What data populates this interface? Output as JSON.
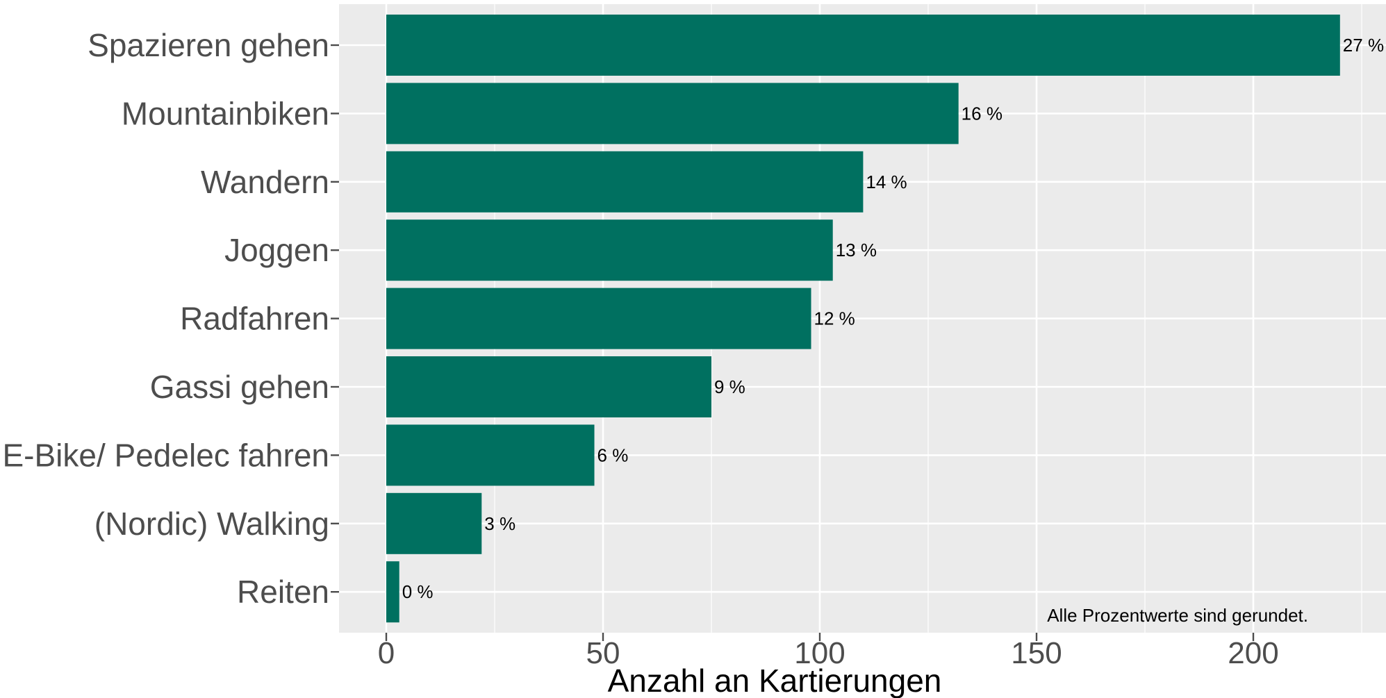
{
  "chart_data": {
    "type": "bar",
    "orientation": "horizontal",
    "categories": [
      "Spazieren gehen",
      "Mountainbiken",
      "Wandern",
      "Joggen",
      "Radfahren",
      "Gassi gehen",
      "E-Bike/ Pedelec fahren",
      "(Nordic) Walking",
      "Reiten"
    ],
    "values": [
      220,
      132,
      110,
      103,
      98,
      75,
      48,
      22,
      3
    ],
    "data_labels": [
      "27 %",
      "16 %",
      "14 %",
      "13 %",
      "12 %",
      "9 %",
      "6 %",
      "3 %",
      "0 %"
    ],
    "xlabel": "Anzahl an Kartierungen",
    "ylabel": "",
    "xlim": [
      -11,
      230
    ],
    "xticks": [
      0,
      50,
      100,
      150,
      200
    ],
    "xtick_labels": [
      "0",
      "50",
      "100",
      "150",
      "200"
    ],
    "grid": true,
    "annotation": "Alle Prozentwerte sind gerundet.",
    "bar_color": "#007060",
    "panel_background": "#ebebeb",
    "grid_color": "#ffffff"
  }
}
